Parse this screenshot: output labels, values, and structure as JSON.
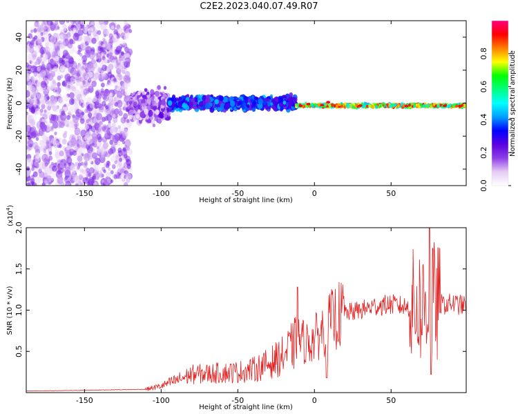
{
  "title": "C2E2.2023.040.07.49.R07",
  "chart_data": [
    {
      "type": "heatmap",
      "title": "C2E2.2023.040.07.49.R07",
      "xlabel": "Height of straight line (km)",
      "ylabel": "Frequency (Hz)",
      "xlim": [
        -188,
        99
      ],
      "ylim": [
        -50,
        50
      ],
      "xticks": [
        -150,
        -100,
        -50,
        0,
        50
      ],
      "yticks": [
        -40,
        -20,
        0,
        20,
        40
      ],
      "colorbar": {
        "label": "Normalized spectral amplitude",
        "range": [
          0,
          1
        ],
        "ticks": [
          "0.0",
          "0.2",
          "0.4",
          "0.6",
          "0.8"
        ],
        "colors": [
          "#ffffff",
          "#e6ccf5",
          "#8f3fe8",
          "#5a00e0",
          "#0000ff",
          "#00a0ff",
          "#00ffff",
          "#00ff80",
          "#00ff00",
          "#ffff00",
          "#ff8000",
          "#ff0000",
          "#ff0080"
        ]
      },
      "regions": [
        {
          "x": [
            -188,
            -120
          ],
          "freq_center": 0,
          "freq_spread": 50,
          "amplitude": [
            0.02,
            0.22
          ],
          "pattern": "diffuse noise"
        },
        {
          "x": [
            -120,
            -95
          ],
          "freq_center": -2,
          "freq_spread": 15,
          "amplitude": [
            0.05,
            0.25
          ],
          "pattern": "transition"
        },
        {
          "x": [
            -95,
            -12
          ],
          "freq_center": 0,
          "freq_spread": 7,
          "amplitude": [
            0.2,
            0.45
          ],
          "pattern": "broad signal band"
        },
        {
          "x": [
            -12,
            99
          ],
          "freq_center": -1.5,
          "freq_spread": 2,
          "amplitude": [
            0.45,
            0.95
          ],
          "pattern": "narrow coherent line"
        }
      ]
    },
    {
      "type": "line",
      "xlabel": "Height of straight line (km)",
      "ylabel": "SNR (10 * v/v)",
      "y_multiplier": "(x10",
      "y_exponent": "4",
      "y_multiplier_close": ")",
      "xlim": [
        -188,
        99
      ],
      "ylim": [
        0,
        20000
      ],
      "xticks": [
        -150,
        -100,
        -50,
        0,
        50
      ],
      "yticks": [
        "0.5",
        "1.0",
        "1.5",
        "2.0"
      ],
      "ytick_values": [
        5000,
        10000,
        15000,
        20000
      ],
      "color": "#e02020",
      "x": [
        -188,
        -160,
        -130,
        -110,
        -100,
        -90,
        -80,
        -70,
        -60,
        -50,
        -40,
        -30,
        -20,
        -15,
        -10,
        -5,
        0,
        5,
        10,
        15,
        20,
        25,
        30,
        40,
        50,
        60,
        65,
        70,
        75,
        80,
        85,
        90,
        99
      ],
      "y": [
        200,
        250,
        350,
        400,
        800,
        1500,
        2200,
        2300,
        2400,
        2500,
        2800,
        3500,
        4500,
        5500,
        6500,
        6000,
        6500,
        7500,
        8500,
        9300,
        9600,
        9800,
        10000,
        10500,
        10700,
        10400,
        10300,
        10600,
        11000,
        10700,
        10700,
        10800,
        10500
      ],
      "spikes": [
        {
          "x": -11,
          "y": 12800
        },
        {
          "x": 8,
          "y": 1800
        },
        {
          "x": 70,
          "y": 7000
        },
        {
          "x": 75,
          "y": 20000
        },
        {
          "x": 76,
          "y": 2200
        },
        {
          "x": 77,
          "y": 17500
        }
      ]
    }
  ]
}
